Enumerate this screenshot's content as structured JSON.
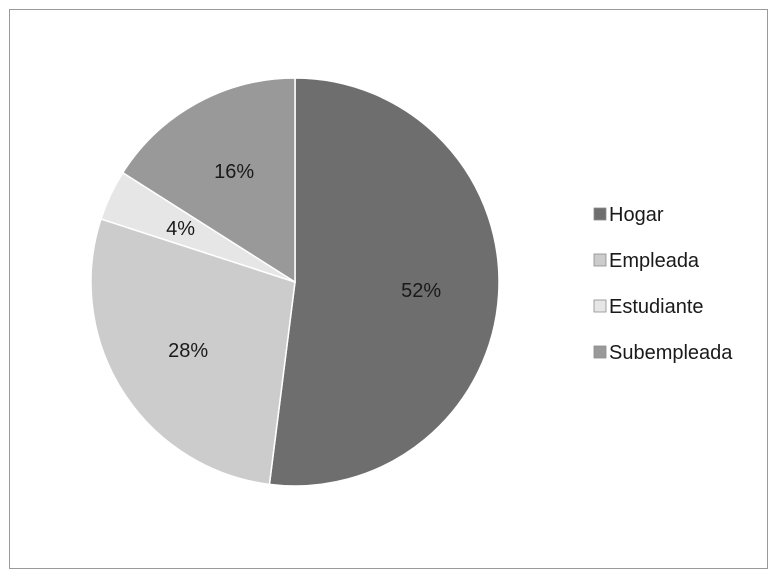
{
  "chart_data": {
    "type": "pie",
    "title": "",
    "categories": [
      "Hogar",
      "Empleada",
      "Estudiante",
      "Subempleada"
    ],
    "values": [
      52,
      28,
      4,
      16
    ],
    "value_labels": [
      "52%",
      "28%",
      "4%",
      "16%"
    ],
    "colors": [
      "#6e6e6e",
      "#cccccc",
      "#e6e6e6",
      "#999999"
    ],
    "legend_position": "right",
    "start_angle": "12 o'clock",
    "direction": "clockwise"
  }
}
